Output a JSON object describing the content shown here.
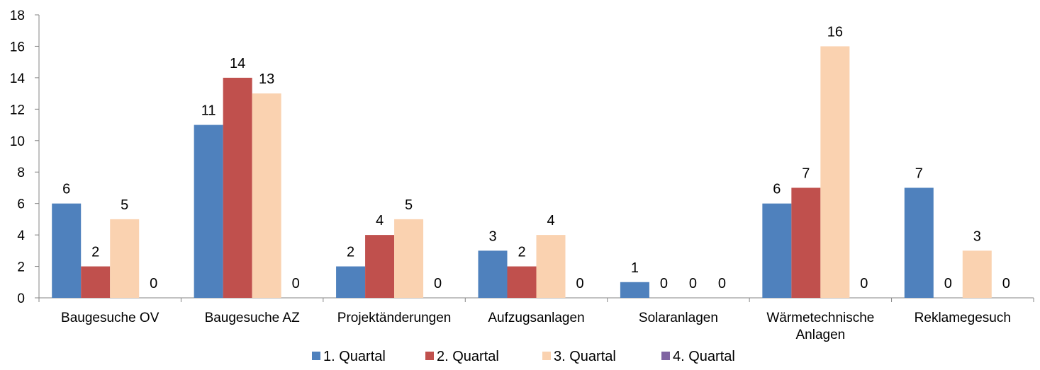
{
  "chart_data": {
    "type": "bar",
    "categories": [
      [
        "Baugesuche OV"
      ],
      [
        "Baugesuche AZ"
      ],
      [
        "Projektänderungen"
      ],
      [
        "Aufzugsanlagen"
      ],
      [
        "Solaranlagen"
      ],
      [
        "Wärmetechnische",
        "Anlagen"
      ],
      [
        "Reklamegesuch"
      ]
    ],
    "series": [
      {
        "name": "1. Quartal",
        "color": "#4f81bd",
        "values": [
          6,
          11,
          2,
          3,
          1,
          6,
          7
        ]
      },
      {
        "name": "2. Quartal",
        "color": "#c0504d",
        "values": [
          2,
          14,
          4,
          2,
          0,
          7,
          0
        ]
      },
      {
        "name": "3. Quartal",
        "color": "#fad2b0",
        "values": [
          5,
          13,
          5,
          4,
          0,
          16,
          3
        ]
      },
      {
        "name": "4. Quartal",
        "color": "#8064a2",
        "values": [
          0,
          0,
          0,
          0,
          0,
          0,
          0
        ]
      }
    ],
    "ylim": [
      0,
      18
    ],
    "yticks": [
      0,
      2,
      4,
      6,
      8,
      10,
      12,
      14,
      16,
      18
    ],
    "grid": false,
    "legend": "bottom",
    "data_labels": true
  }
}
